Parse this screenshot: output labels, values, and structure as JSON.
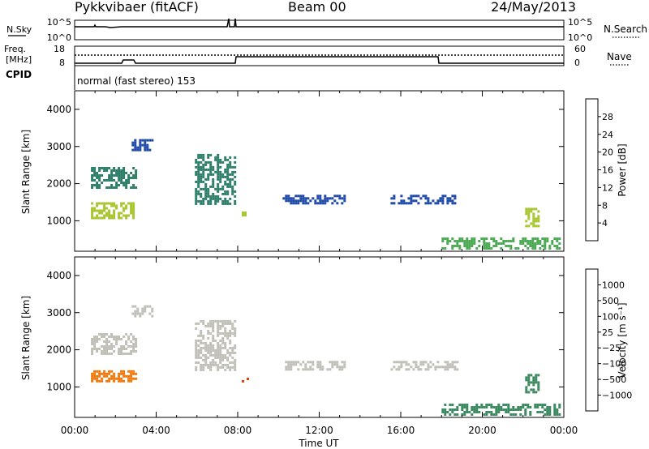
{
  "header": {
    "station": "Pykkvibaer (fitACF)",
    "beam": "Beam 00",
    "date": "24/May/2013"
  },
  "noise_panel": {
    "left_label": "N.Sky",
    "right_label": "N.Search",
    "left_ticks": [
      "10^5",
      "10^0"
    ],
    "right_ticks": [
      "10^5",
      "10^0"
    ]
  },
  "freq_panel": {
    "left_label_1": "Freq.",
    "left_label_2": "[MHz]",
    "right_label": "Nave",
    "left_ticks": [
      "18",
      "8"
    ],
    "right_ticks": [
      "60",
      "0"
    ]
  },
  "cpid_panel": {
    "label": "CPID",
    "text": "normal (fast stereo) 153"
  },
  "time_axis": {
    "xlabel": "Time UT",
    "ticks": [
      "00:00",
      "04:00",
      "08:00",
      "12:00",
      "16:00",
      "20:00",
      "00:00"
    ]
  },
  "power_colorbar": {
    "label": "Power [dB]",
    "ticks": [
      "4",
      "8",
      "12",
      "16",
      "20",
      "24",
      "28"
    ],
    "colors": [
      "#1a2bd9",
      "#1f4aa8",
      "#2e7f6a",
      "#4daa54",
      "#a8c630",
      "#f0a020",
      "#f07a10",
      "#e63a10",
      "#d01010"
    ]
  },
  "velocity_colorbar": {
    "label": "Velocity [m s⁻¹]",
    "ticks": [
      "1000",
      "500",
      "100",
      "25",
      "−25",
      "−100",
      "−500",
      "−1000"
    ],
    "colors": [
      "#1a3fc8",
      "#2a6aa0",
      "#3b8a60",
      "#6fc040",
      "#c0c0b8",
      "#c0c0b8",
      "#f0a020",
      "#f07a10",
      "#e84010",
      "#d01010"
    ]
  },
  "chart_data": [
    {
      "type": "heatmap",
      "title": "",
      "xlabel": "",
      "ylabel": "Slant Range [km]",
      "xlim": [
        0,
        24
      ],
      "ylim": [
        180,
        4500
      ],
      "yticks": [
        1000,
        2000,
        3000,
        4000
      ],
      "quantity": "Power [dB]",
      "regions": [
        {
          "t0": 0.8,
          "t1": 2.9,
          "r0": 1050,
          "r1": 1500,
          "level": 16
        },
        {
          "t0": 0.8,
          "t1": 3.1,
          "r0": 1850,
          "r1": 2450,
          "level": 8
        },
        {
          "t0": 2.8,
          "t1": 3.9,
          "r0": 2900,
          "r1": 3200,
          "level": 6
        },
        {
          "t0": 5.9,
          "t1": 7.9,
          "r0": 1400,
          "r1": 2800,
          "level": 9
        },
        {
          "t0": 8.2,
          "t1": 8.6,
          "r0": 1100,
          "r1": 1250,
          "level": 18
        },
        {
          "t0": 10.2,
          "t1": 13.3,
          "r0": 1450,
          "r1": 1700,
          "level": 6
        },
        {
          "t0": 15.5,
          "t1": 18.8,
          "r0": 1450,
          "r1": 1700,
          "level": 6
        },
        {
          "t0": 18.0,
          "t1": 23.9,
          "r0": 200,
          "r1": 550,
          "level": 14
        },
        {
          "t0": 22.1,
          "t1": 22.8,
          "r0": 800,
          "r1": 1350,
          "level": 18
        }
      ]
    },
    {
      "type": "heatmap",
      "title": "",
      "xlabel": "Time UT",
      "ylabel": "Slant Range [km]",
      "xlim": [
        0,
        24
      ],
      "ylim": [
        180,
        4500
      ],
      "yticks": [
        1000,
        2000,
        3000,
        4000
      ],
      "quantity": "Velocity [m s⁻¹]",
      "regions": [
        {
          "t0": 0.8,
          "t1": 3.1,
          "r0": 1150,
          "r1": 1450,
          "level": -100
        },
        {
          "t0": 0.8,
          "t1": 3.1,
          "r0": 1850,
          "r1": 2450,
          "level": 0
        },
        {
          "t0": 2.8,
          "t1": 3.9,
          "r0": 2900,
          "r1": 3200,
          "level": 0
        },
        {
          "t0": 5.9,
          "t1": 7.9,
          "r0": 1400,
          "r1": 2800,
          "level": 0
        },
        {
          "t0": 8.2,
          "t1": 8.6,
          "r0": 1100,
          "r1": 1250,
          "level": -500
        },
        {
          "t0": 10.2,
          "t1": 13.3,
          "r0": 1450,
          "r1": 1700,
          "level": 0
        },
        {
          "t0": 15.5,
          "t1": 18.8,
          "r0": 1450,
          "r1": 1700,
          "level": 0
        },
        {
          "t0": 18.0,
          "t1": 23.9,
          "r0": 200,
          "r1": 550,
          "level": 100
        },
        {
          "t0": 22.1,
          "t1": 22.8,
          "r0": 800,
          "r1": 1350,
          "level": 100
        }
      ]
    }
  ]
}
